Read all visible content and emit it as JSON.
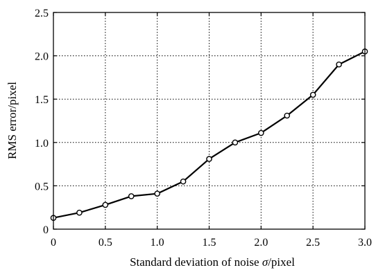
{
  "chart_data": {
    "type": "line",
    "title": "",
    "xlabel_prefix": "Standard deviation of noise ",
    "xlabel_symbol": "σ",
    "xlabel_suffix": "/pixel",
    "ylabel": "RMS error/pixel",
    "xlim": [
      0,
      3.0
    ],
    "ylim": [
      0,
      2.5
    ],
    "grid": true,
    "x_ticks": [
      0,
      0.5,
      1.0,
      1.5,
      2.0,
      2.5,
      3.0
    ],
    "x_tick_labels": [
      "0",
      "0.5",
      "1.0",
      "1.5",
      "2.0",
      "2.5",
      "3.0"
    ],
    "y_ticks": [
      0,
      0.5,
      1.0,
      1.5,
      2.0,
      2.5
    ],
    "y_tick_labels": [
      "0",
      "0.5",
      "1.0",
      "1.5",
      "2.0",
      "2.5"
    ],
    "series": [
      {
        "x": [
          0,
          0.25,
          0.5,
          0.75,
          1.0,
          1.25,
          1.5,
          1.75,
          2.0,
          2.25,
          2.5,
          2.75,
          3.0
        ],
        "y": [
          0.13,
          0.19,
          0.28,
          0.38,
          0.41,
          0.55,
          0.81,
          1.0,
          1.11,
          1.31,
          1.55,
          1.9,
          2.05
        ],
        "color": "#000000",
        "marker": "open-circle"
      }
    ]
  }
}
